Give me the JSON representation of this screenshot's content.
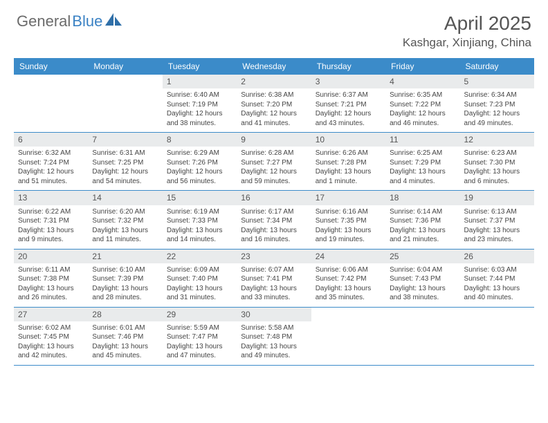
{
  "logo": {
    "textGeneral": "General",
    "textBlue": "Blue",
    "shapeColor": "#2f6fa8"
  },
  "title": "April 2025",
  "location": "Kashgar, Xinjiang, China",
  "colors": {
    "headerBar": "#3b8bc9",
    "dayNumBar": "#e9ebec",
    "ruleLine": "#3b8bc9",
    "textMuted": "#555555",
    "bodyText": "#444444"
  },
  "weekdays": [
    "Sunday",
    "Monday",
    "Tuesday",
    "Wednesday",
    "Thursday",
    "Friday",
    "Saturday"
  ],
  "weeks": [
    [
      {
        "empty": true
      },
      {
        "empty": true
      },
      {
        "day": "1",
        "sunrise": "Sunrise: 6:40 AM",
        "sunset": "Sunset: 7:19 PM",
        "daylight": "Daylight: 12 hours and 38 minutes."
      },
      {
        "day": "2",
        "sunrise": "Sunrise: 6:38 AM",
        "sunset": "Sunset: 7:20 PM",
        "daylight": "Daylight: 12 hours and 41 minutes."
      },
      {
        "day": "3",
        "sunrise": "Sunrise: 6:37 AM",
        "sunset": "Sunset: 7:21 PM",
        "daylight": "Daylight: 12 hours and 43 minutes."
      },
      {
        "day": "4",
        "sunrise": "Sunrise: 6:35 AM",
        "sunset": "Sunset: 7:22 PM",
        "daylight": "Daylight: 12 hours and 46 minutes."
      },
      {
        "day": "5",
        "sunrise": "Sunrise: 6:34 AM",
        "sunset": "Sunset: 7:23 PM",
        "daylight": "Daylight: 12 hours and 49 minutes."
      }
    ],
    [
      {
        "day": "6",
        "sunrise": "Sunrise: 6:32 AM",
        "sunset": "Sunset: 7:24 PM",
        "daylight": "Daylight: 12 hours and 51 minutes."
      },
      {
        "day": "7",
        "sunrise": "Sunrise: 6:31 AM",
        "sunset": "Sunset: 7:25 PM",
        "daylight": "Daylight: 12 hours and 54 minutes."
      },
      {
        "day": "8",
        "sunrise": "Sunrise: 6:29 AM",
        "sunset": "Sunset: 7:26 PM",
        "daylight": "Daylight: 12 hours and 56 minutes."
      },
      {
        "day": "9",
        "sunrise": "Sunrise: 6:28 AM",
        "sunset": "Sunset: 7:27 PM",
        "daylight": "Daylight: 12 hours and 59 minutes."
      },
      {
        "day": "10",
        "sunrise": "Sunrise: 6:26 AM",
        "sunset": "Sunset: 7:28 PM",
        "daylight": "Daylight: 13 hours and 1 minute."
      },
      {
        "day": "11",
        "sunrise": "Sunrise: 6:25 AM",
        "sunset": "Sunset: 7:29 PM",
        "daylight": "Daylight: 13 hours and 4 minutes."
      },
      {
        "day": "12",
        "sunrise": "Sunrise: 6:23 AM",
        "sunset": "Sunset: 7:30 PM",
        "daylight": "Daylight: 13 hours and 6 minutes."
      }
    ],
    [
      {
        "day": "13",
        "sunrise": "Sunrise: 6:22 AM",
        "sunset": "Sunset: 7:31 PM",
        "daylight": "Daylight: 13 hours and 9 minutes."
      },
      {
        "day": "14",
        "sunrise": "Sunrise: 6:20 AM",
        "sunset": "Sunset: 7:32 PM",
        "daylight": "Daylight: 13 hours and 11 minutes."
      },
      {
        "day": "15",
        "sunrise": "Sunrise: 6:19 AM",
        "sunset": "Sunset: 7:33 PM",
        "daylight": "Daylight: 13 hours and 14 minutes."
      },
      {
        "day": "16",
        "sunrise": "Sunrise: 6:17 AM",
        "sunset": "Sunset: 7:34 PM",
        "daylight": "Daylight: 13 hours and 16 minutes."
      },
      {
        "day": "17",
        "sunrise": "Sunrise: 6:16 AM",
        "sunset": "Sunset: 7:35 PM",
        "daylight": "Daylight: 13 hours and 19 minutes."
      },
      {
        "day": "18",
        "sunrise": "Sunrise: 6:14 AM",
        "sunset": "Sunset: 7:36 PM",
        "daylight": "Daylight: 13 hours and 21 minutes."
      },
      {
        "day": "19",
        "sunrise": "Sunrise: 6:13 AM",
        "sunset": "Sunset: 7:37 PM",
        "daylight": "Daylight: 13 hours and 23 minutes."
      }
    ],
    [
      {
        "day": "20",
        "sunrise": "Sunrise: 6:11 AM",
        "sunset": "Sunset: 7:38 PM",
        "daylight": "Daylight: 13 hours and 26 minutes."
      },
      {
        "day": "21",
        "sunrise": "Sunrise: 6:10 AM",
        "sunset": "Sunset: 7:39 PM",
        "daylight": "Daylight: 13 hours and 28 minutes."
      },
      {
        "day": "22",
        "sunrise": "Sunrise: 6:09 AM",
        "sunset": "Sunset: 7:40 PM",
        "daylight": "Daylight: 13 hours and 31 minutes."
      },
      {
        "day": "23",
        "sunrise": "Sunrise: 6:07 AM",
        "sunset": "Sunset: 7:41 PM",
        "daylight": "Daylight: 13 hours and 33 minutes."
      },
      {
        "day": "24",
        "sunrise": "Sunrise: 6:06 AM",
        "sunset": "Sunset: 7:42 PM",
        "daylight": "Daylight: 13 hours and 35 minutes."
      },
      {
        "day": "25",
        "sunrise": "Sunrise: 6:04 AM",
        "sunset": "Sunset: 7:43 PM",
        "daylight": "Daylight: 13 hours and 38 minutes."
      },
      {
        "day": "26",
        "sunrise": "Sunrise: 6:03 AM",
        "sunset": "Sunset: 7:44 PM",
        "daylight": "Daylight: 13 hours and 40 minutes."
      }
    ],
    [
      {
        "day": "27",
        "sunrise": "Sunrise: 6:02 AM",
        "sunset": "Sunset: 7:45 PM",
        "daylight": "Daylight: 13 hours and 42 minutes."
      },
      {
        "day": "28",
        "sunrise": "Sunrise: 6:01 AM",
        "sunset": "Sunset: 7:46 PM",
        "daylight": "Daylight: 13 hours and 45 minutes."
      },
      {
        "day": "29",
        "sunrise": "Sunrise: 5:59 AM",
        "sunset": "Sunset: 7:47 PM",
        "daylight": "Daylight: 13 hours and 47 minutes."
      },
      {
        "day": "30",
        "sunrise": "Sunrise: 5:58 AM",
        "sunset": "Sunset: 7:48 PM",
        "daylight": "Daylight: 13 hours and 49 minutes."
      },
      {
        "empty": true
      },
      {
        "empty": true
      },
      {
        "empty": true
      }
    ]
  ]
}
